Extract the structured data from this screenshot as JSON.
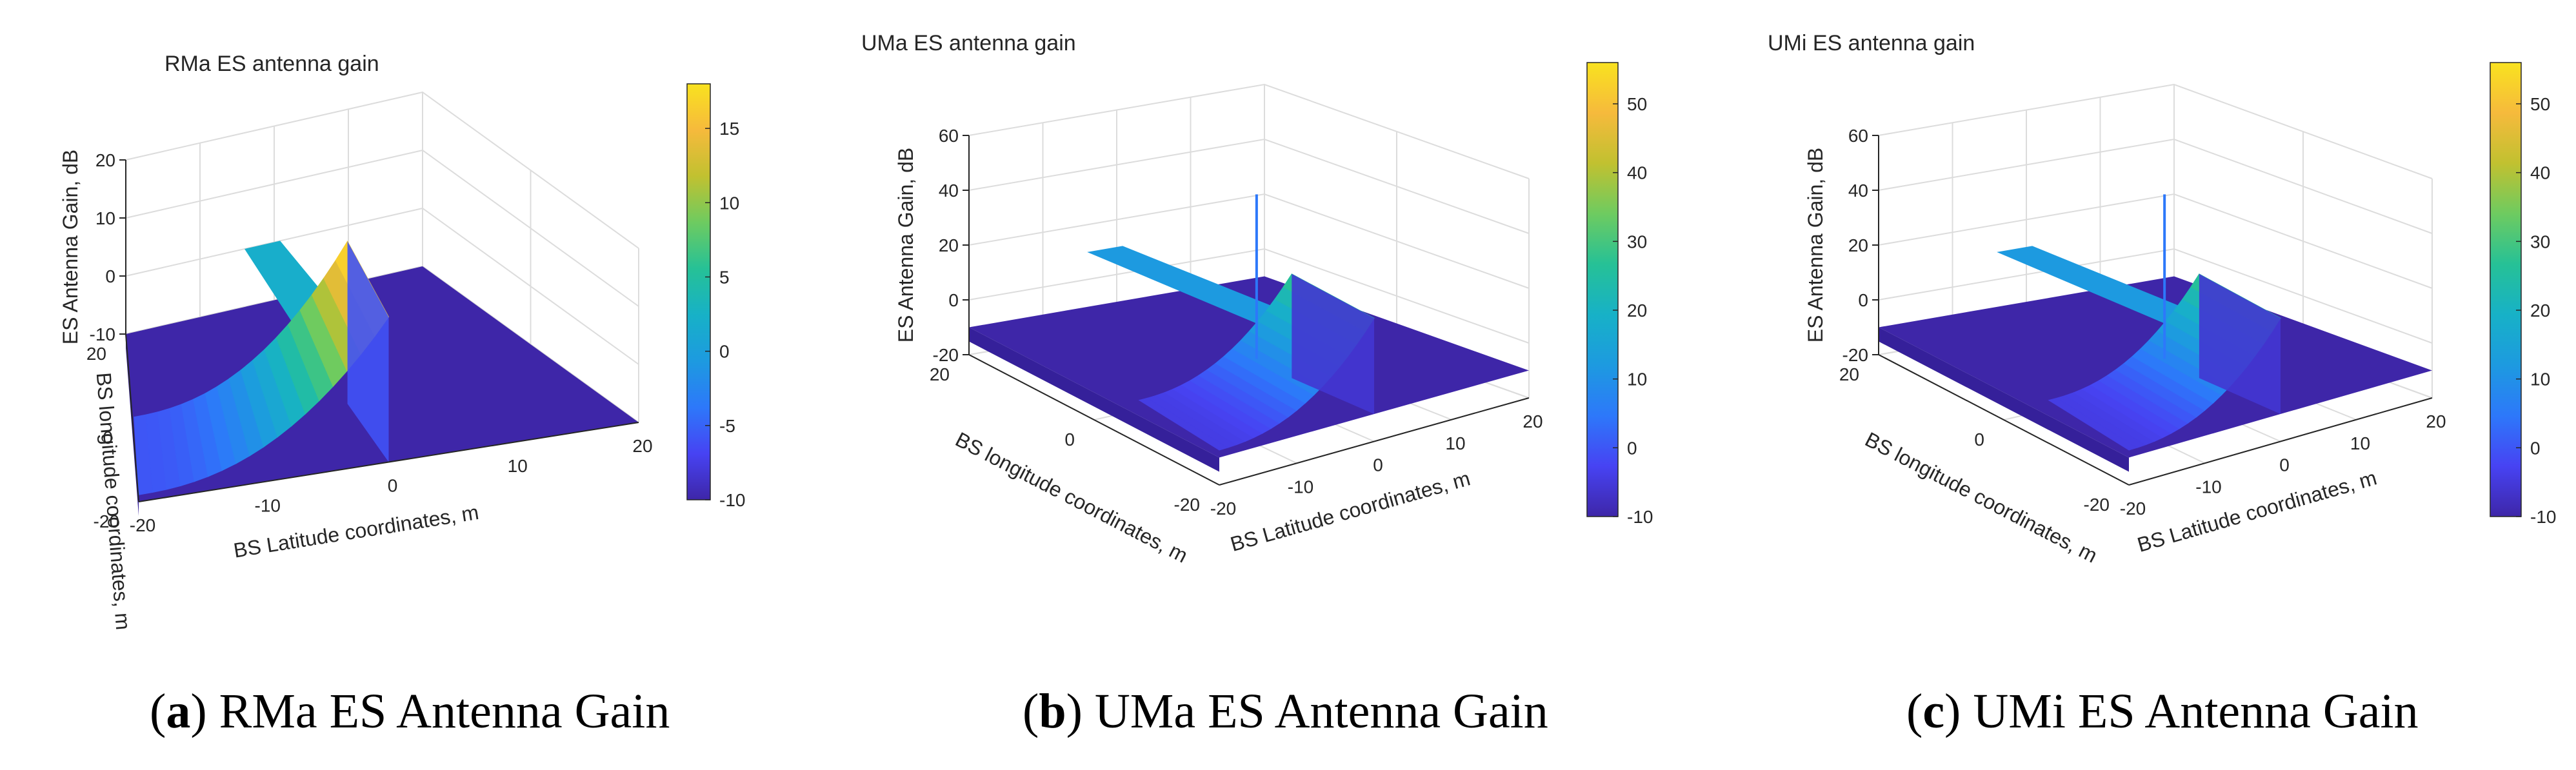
{
  "colormap": [
    "#3e26a8",
    "#4743f3",
    "#2d78fa",
    "#1d9ae0",
    "#17b1c7",
    "#26c196",
    "#6ecb60",
    "#c1c130",
    "#f6ba3c",
    "#f9e21f"
  ],
  "chart_data": [
    {
      "type": "surface",
      "id": "a",
      "title": "RMa ES antenna gain",
      "xlabel": "BS Latitude coordinates, m",
      "ylabel": "BS longitude coordinates, m",
      "zlabel": "ES Antenna Gain, dB",
      "xticks": [
        "-20",
        "-10",
        "0",
        "10",
        "20"
      ],
      "yticks": [
        "-20",
        "0",
        "20"
      ],
      "zticks": [
        "-10",
        "0",
        "10",
        "20"
      ],
      "zlim": [
        -10,
        20
      ],
      "colorbar_ticks": [
        "-10",
        "-5",
        "0",
        "5",
        "10",
        "15"
      ],
      "colorbar_range": [
        -10,
        18
      ],
      "surface": {
        "peak_db": 18,
        "floor_db": -10,
        "shelf_db": 2,
        "spike_db": null
      },
      "caption_letter": "a",
      "caption_text": "RMa ES Antenna Gain"
    },
    {
      "type": "surface",
      "id": "b",
      "title": "UMa ES antenna gain",
      "xlabel": "BS Latitude coordinates, m",
      "ylabel": "BS longitude coordinates, m",
      "zlabel": "ES Antenna Gain, dB",
      "xticks": [
        "-20",
        "-10",
        "0",
        "10",
        "20"
      ],
      "yticks": [
        "-20",
        "0",
        "20"
      ],
      "zticks": [
        "-20",
        "0",
        "20",
        "40",
        "60"
      ],
      "zlim": [
        -20,
        60
      ],
      "colorbar_ticks": [
        "-10",
        "0",
        "10",
        "20",
        "30",
        "40",
        "50"
      ],
      "colorbar_range": [
        -10,
        56
      ],
      "surface": {
        "peak_db": 28,
        "floor_db": -10,
        "shelf_db": 12,
        "spike_db": 50
      },
      "caption_letter": "b",
      "caption_text": "UMa ES Antenna Gain"
    },
    {
      "type": "surface",
      "id": "c",
      "title": "UMi ES antenna gain",
      "xlabel": "BS Latitude coordinates, m",
      "ylabel": "BS longitude coordinates, m",
      "zlabel": "ES Antenna Gain, dB",
      "xticks": [
        "-20",
        "-10",
        "0",
        "10",
        "20"
      ],
      "yticks": [
        "-20",
        "0",
        "20"
      ],
      "zticks": [
        "-20",
        "0",
        "20",
        "40",
        "60"
      ],
      "zlim": [
        -20,
        60
      ],
      "colorbar_ticks": [
        "-10",
        "0",
        "10",
        "20",
        "30",
        "40",
        "50"
      ],
      "colorbar_range": [
        -10,
        56
      ],
      "surface": {
        "peak_db": 28,
        "floor_db": -10,
        "shelf_db": 12,
        "spike_db": 50
      },
      "caption_letter": "c",
      "caption_text": "UMi ES Antenna Gain"
    }
  ]
}
